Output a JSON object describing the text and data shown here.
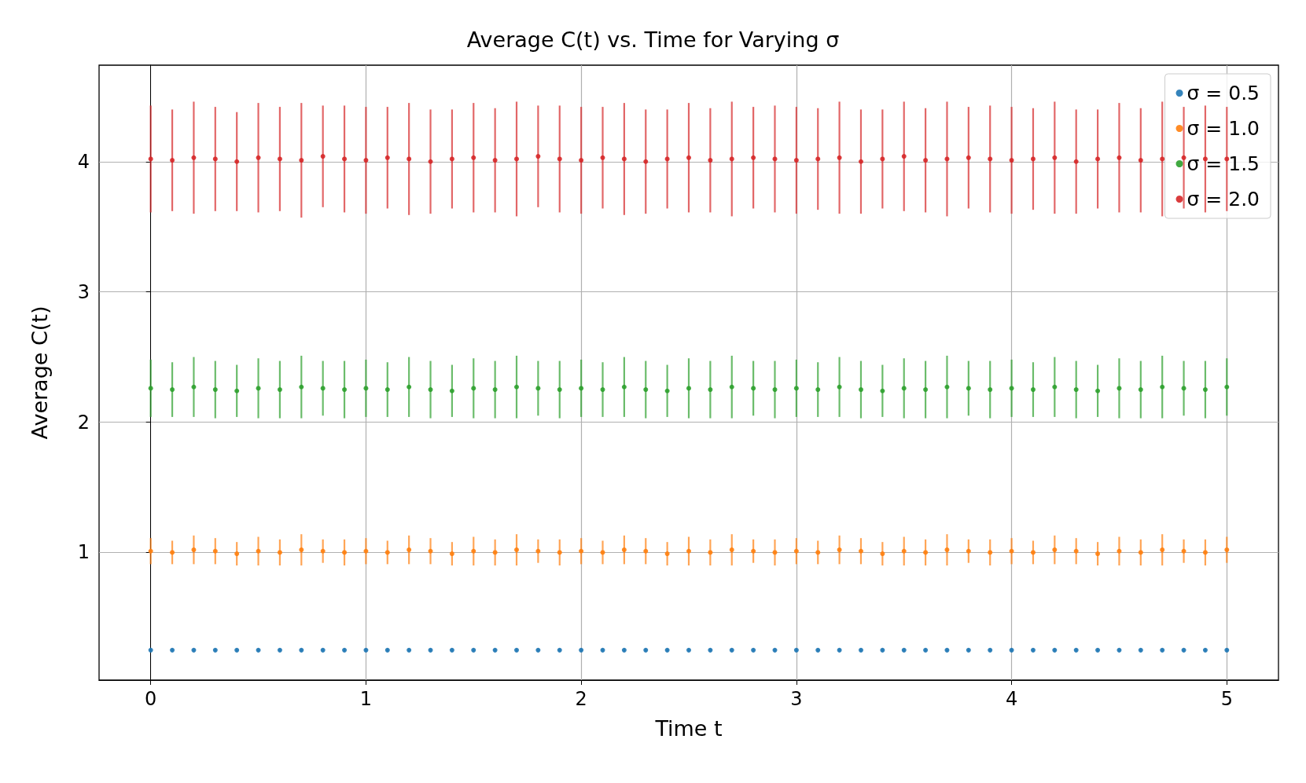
{
  "chart_data": {
    "type": "scatter",
    "title": "Average C(t) vs. Time for Varying σ",
    "xlabel": "Time t",
    "ylabel": "Average C(t)",
    "x": [
      0,
      0.1,
      0.2,
      0.3,
      0.4,
      0.5,
      0.6,
      0.7,
      0.8,
      0.9,
      1,
      1.1,
      1.2,
      1.3,
      1.4,
      1.5,
      1.6,
      1.7,
      1.8,
      1.9,
      2,
      2.1,
      2.2,
      2.3,
      2.4,
      2.5,
      2.6,
      2.7,
      2.8,
      2.9,
      3,
      3.1,
      3.2,
      3.3,
      3.4,
      3.5,
      3.6,
      3.7,
      3.8,
      3.9,
      4,
      4.1,
      4.2,
      4.3,
      4.4,
      4.5,
      4.6,
      4.7,
      4.8,
      4.9,
      5
    ],
    "xlim": [
      -0.24,
      5.24
    ],
    "xticks": [
      0,
      1,
      2,
      3,
      4,
      5
    ],
    "ylim": [
      0.02,
      4.74
    ],
    "yticks": [
      1,
      2,
      3,
      4
    ],
    "grid": true,
    "legend": "top right",
    "marker": "circle",
    "series": [
      {
        "name": "σ = 0.5",
        "color": "#1f77b4",
        "values": [
          0.25,
          0.25,
          0.25,
          0.25,
          0.25,
          0.25,
          0.25,
          0.25,
          0.25,
          0.25,
          0.25,
          0.25,
          0.25,
          0.25,
          0.25,
          0.25,
          0.25,
          0.25,
          0.25,
          0.25,
          0.25,
          0.25,
          0.25,
          0.25,
          0.25,
          0.25,
          0.25,
          0.25,
          0.25,
          0.25,
          0.25,
          0.25,
          0.25,
          0.25,
          0.25,
          0.25,
          0.25,
          0.25,
          0.25,
          0.25,
          0.25,
          0.25,
          0.25,
          0.25,
          0.25,
          0.25,
          0.25,
          0.25,
          0.25,
          0.25,
          0.25
        ],
        "errors": [
          0.01,
          0.01,
          0.01,
          0.01,
          0.01,
          0.01,
          0.01,
          0.01,
          0.01,
          0.01,
          0.01,
          0.01,
          0.01,
          0.01,
          0.01,
          0.01,
          0.01,
          0.01,
          0.01,
          0.01,
          0.01,
          0.01,
          0.01,
          0.01,
          0.01,
          0.01,
          0.01,
          0.01,
          0.01,
          0.01,
          0.01,
          0.01,
          0.01,
          0.01,
          0.01,
          0.01,
          0.01,
          0.01,
          0.01,
          0.01,
          0.01,
          0.01,
          0.01,
          0.01,
          0.01,
          0.01,
          0.01,
          0.01,
          0.01,
          0.01,
          0.01
        ]
      },
      {
        "name": "σ = 1.0",
        "color": "#ff7f0e",
        "values": [
          1.01,
          1.0,
          1.02,
          1.01,
          0.99,
          1.01,
          1.0,
          1.02,
          1.01,
          1.0,
          1.01,
          1.0,
          1.02,
          1.01,
          0.99,
          1.01,
          1.0,
          1.02,
          1.01,
          1.0,
          1.01,
          1.0,
          1.02,
          1.01,
          0.99,
          1.01,
          1.0,
          1.02,
          1.01,
          1.0,
          1.01,
          1.0,
          1.02,
          1.01,
          0.99,
          1.01,
          1.0,
          1.02,
          1.01,
          1.0,
          1.01,
          1.0,
          1.02,
          1.01,
          0.99,
          1.01,
          1.0,
          1.02,
          1.01,
          1.0,
          1.02
        ],
        "errors": [
          0.1,
          0.09,
          0.11,
          0.1,
          0.09,
          0.11,
          0.1,
          0.12,
          0.09,
          0.1,
          0.1,
          0.09,
          0.11,
          0.1,
          0.09,
          0.11,
          0.1,
          0.12,
          0.09,
          0.1,
          0.1,
          0.09,
          0.11,
          0.1,
          0.09,
          0.11,
          0.1,
          0.12,
          0.09,
          0.1,
          0.1,
          0.09,
          0.11,
          0.1,
          0.09,
          0.11,
          0.1,
          0.12,
          0.09,
          0.1,
          0.1,
          0.09,
          0.11,
          0.1,
          0.09,
          0.11,
          0.1,
          0.12,
          0.09,
          0.1,
          0.1
        ]
      },
      {
        "name": "σ = 1.5",
        "color": "#2ca02c",
        "values": [
          2.26,
          2.25,
          2.27,
          2.25,
          2.24,
          2.26,
          2.25,
          2.27,
          2.26,
          2.25,
          2.26,
          2.25,
          2.27,
          2.25,
          2.24,
          2.26,
          2.25,
          2.27,
          2.26,
          2.25,
          2.26,
          2.25,
          2.27,
          2.25,
          2.24,
          2.26,
          2.25,
          2.27,
          2.26,
          2.25,
          2.26,
          2.25,
          2.27,
          2.25,
          2.24,
          2.26,
          2.25,
          2.27,
          2.26,
          2.25,
          2.26,
          2.25,
          2.27,
          2.25,
          2.24,
          2.26,
          2.25,
          2.27,
          2.26,
          2.25,
          2.27
        ],
        "errors": [
          0.22,
          0.21,
          0.23,
          0.22,
          0.2,
          0.23,
          0.22,
          0.24,
          0.21,
          0.22,
          0.22,
          0.21,
          0.23,
          0.22,
          0.2,
          0.23,
          0.22,
          0.24,
          0.21,
          0.22,
          0.22,
          0.21,
          0.23,
          0.22,
          0.2,
          0.23,
          0.22,
          0.24,
          0.21,
          0.22,
          0.22,
          0.21,
          0.23,
          0.22,
          0.2,
          0.23,
          0.22,
          0.24,
          0.21,
          0.22,
          0.22,
          0.21,
          0.23,
          0.22,
          0.2,
          0.23,
          0.22,
          0.24,
          0.21,
          0.22,
          0.22
        ]
      },
      {
        "name": "σ = 2.0",
        "color": "#d62728",
        "values": [
          4.02,
          4.01,
          4.03,
          4.02,
          4.0,
          4.03,
          4.02,
          4.01,
          4.04,
          4.02,
          4.01,
          4.03,
          4.02,
          4.0,
          4.02,
          4.03,
          4.01,
          4.02,
          4.04,
          4.02,
          4.01,
          4.03,
          4.02,
          4.0,
          4.02,
          4.03,
          4.01,
          4.02,
          4.03,
          4.02,
          4.01,
          4.02,
          4.03,
          4.0,
          4.02,
          4.04,
          4.01,
          4.02,
          4.03,
          4.02,
          4.01,
          4.02,
          4.03,
          4.0,
          4.02,
          4.03,
          4.01,
          4.02,
          4.03,
          4.02,
          4.02
        ],
        "errors": [
          0.41,
          0.39,
          0.43,
          0.4,
          0.38,
          0.42,
          0.4,
          0.44,
          0.39,
          0.41,
          0.41,
          0.39,
          0.43,
          0.4,
          0.38,
          0.42,
          0.4,
          0.44,
          0.39,
          0.41,
          0.41,
          0.39,
          0.43,
          0.4,
          0.38,
          0.42,
          0.4,
          0.44,
          0.39,
          0.41,
          0.41,
          0.39,
          0.43,
          0.4,
          0.38,
          0.42,
          0.4,
          0.44,
          0.39,
          0.41,
          0.41,
          0.39,
          0.43,
          0.4,
          0.38,
          0.42,
          0.4,
          0.44,
          0.39,
          0.41,
          0.4
        ]
      }
    ]
  }
}
